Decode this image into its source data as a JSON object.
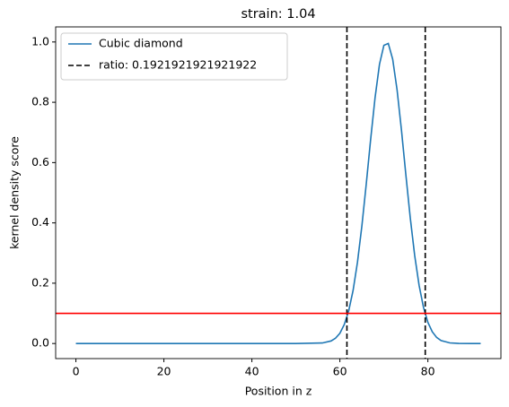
{
  "chart_data": {
    "type": "line",
    "title": "strain: 1.04",
    "xlabel": "Position in z",
    "ylabel": "kernel density score",
    "x": [
      0,
      10,
      20,
      30,
      40,
      50,
      56,
      58,
      59,
      60,
      61,
      62,
      63,
      64,
      65,
      66,
      67,
      68,
      69,
      70,
      71,
      72,
      73,
      74,
      75,
      76,
      77,
      78,
      79,
      80,
      81,
      82,
      83,
      85,
      87,
      90,
      92
    ],
    "series": [
      {
        "name": "Cubic diamond",
        "color": "#1f77b4",
        "values": [
          0,
          0,
          0,
          0,
          0,
          0,
          0.0017,
          0.0085,
          0.0176,
          0.034,
          0.063,
          0.108,
          0.176,
          0.27,
          0.39,
          0.53,
          0.678,
          0.816,
          0.926,
          0.989,
          0.995,
          0.943,
          0.841,
          0.707,
          0.559,
          0.416,
          0.292,
          0.193,
          0.12,
          0.07,
          0.039,
          0.02,
          0.0099,
          0.002,
          0.0003,
          0,
          0
        ]
      }
    ],
    "vlines": {
      "name": "ratio: 0.1921921921921922",
      "color": "#000000",
      "values": [
        61.6,
        79.4
      ]
    },
    "hline": {
      "value": 0.1,
      "color": "#ff0000"
    },
    "xlim": [
      -4.6,
      96.6
    ],
    "xticks": [
      0,
      20,
      40,
      60,
      80
    ],
    "ylim": [
      -0.05,
      1.05
    ],
    "yticks": [
      {
        "value": 0,
        "label": "0.0"
      },
      {
        "value": 0.2,
        "label": "0.2"
      },
      {
        "value": 0.4,
        "label": "0.4"
      },
      {
        "value": 0.6,
        "label": "0.6"
      },
      {
        "value": 0.8,
        "label": "0.8"
      },
      {
        "value": 1,
        "label": "1.0"
      }
    ],
    "legend": "upper left"
  }
}
